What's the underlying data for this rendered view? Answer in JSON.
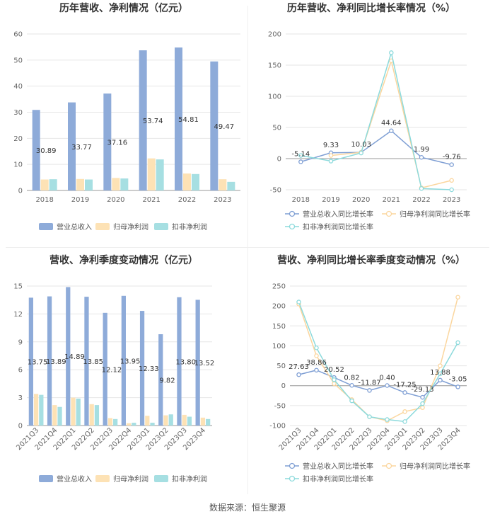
{
  "source_text": "数据来源：恒生聚源",
  "chart_data": [
    {
      "type": "bar",
      "title": "历年营收、净利情况（亿元）",
      "categories": [
        "2018",
        "2019",
        "2020",
        "2021",
        "2022",
        "2023"
      ],
      "ylim": [
        0,
        60
      ],
      "yticks": [
        0,
        10,
        20,
        30,
        40,
        50,
        60
      ],
      "series": [
        {
          "name": "营业总收入",
          "color": "#8eabd9",
          "values": [
            30.89,
            33.77,
            37.16,
            53.74,
            54.81,
            49.47
          ],
          "labels": [
            "30.89",
            "33.77",
            "37.16",
            "53.74",
            "54.81",
            "49.47"
          ]
        },
        {
          "name": "归母净利润",
          "color": "#fde2b5",
          "values": [
            4.2,
            4.4,
            4.8,
            12.3,
            6.5,
            4.3
          ]
        },
        {
          "name": "扣非净利润",
          "color": "#a6dfe2",
          "values": [
            4.3,
            4.2,
            4.6,
            11.9,
            6.3,
            3.3
          ]
        }
      ]
    },
    {
      "type": "line",
      "title": "历年营收、净利同比增长率情况（%）",
      "categories": [
        "2018",
        "2019",
        "2020",
        "2021",
        "2022",
        "2023"
      ],
      "ylim": [
        -50,
        200
      ],
      "yticks": [
        -50,
        0,
        50,
        100,
        150,
        200
      ],
      "series": [
        {
          "name": "营业总收入同比增长率",
          "color": "#7f9fd4",
          "values": [
            -5.14,
            9.33,
            10.03,
            44.64,
            1.99,
            -9.76
          ],
          "labels": [
            "-5.14",
            "9.33",
            "10.03",
            "44.64",
            "1.99",
            "-9.76"
          ]
        },
        {
          "name": "归母净利润同比增长率",
          "color": "#fbd69e",
          "values": [
            null,
            5,
            10,
            157,
            -47,
            -35
          ]
        },
        {
          "name": "扣非净利润同比增长率",
          "color": "#8cdadc",
          "values": [
            5,
            -4,
            9,
            170,
            -48,
            -50
          ]
        }
      ]
    },
    {
      "type": "bar",
      "title": "营收、净利季度变动情况（亿元）",
      "categories": [
        "2021Q3",
        "2021Q4",
        "2022Q1",
        "2022Q2",
        "2022Q3",
        "2022Q4",
        "2023Q1",
        "2023Q2",
        "2023Q3",
        "2023Q4"
      ],
      "ylim": [
        0,
        15
      ],
      "yticks": [
        0,
        3,
        6,
        9,
        12,
        15
      ],
      "series": [
        {
          "name": "营业总收入",
          "color": "#8eabd9",
          "values": [
            13.75,
            13.89,
            14.89,
            13.85,
            12.12,
            13.95,
            12.33,
            9.82,
            13.8,
            13.52
          ],
          "labels": [
            "13.75",
            "13.89",
            "14.89",
            "13.85",
            "12.12",
            "13.95",
            "12.33",
            "9.82",
            "13.80",
            "13.52"
          ]
        },
        {
          "name": "归母净利润",
          "color": "#fde2b5",
          "values": [
            3.4,
            2.2,
            3.0,
            2.3,
            0.8,
            0.25,
            1.05,
            1.1,
            1.15,
            0.85
          ]
        },
        {
          "name": "扣非净利润",
          "color": "#a6dfe2",
          "values": [
            3.3,
            2.0,
            2.9,
            2.2,
            0.7,
            0.3,
            0.3,
            1.2,
            0.95,
            0.7
          ]
        }
      ]
    },
    {
      "type": "line",
      "title": "营收、净利同比增长率季度变动情况（%）",
      "categories": [
        "2021Q3",
        "2021Q4",
        "2022Q1",
        "2022Q2",
        "2022Q3",
        "2022Q4",
        "2023Q1",
        "2023Q2",
        "2023Q3",
        "2023Q4"
      ],
      "ylim": [
        -100,
        250
      ],
      "yticks": [
        -100,
        -50,
        0,
        50,
        100,
        150,
        200,
        250
      ],
      "series": [
        {
          "name": "营业总收入同比增长率",
          "color": "#7f9fd4",
          "values": [
            27.63,
            38.86,
            20.52,
            0.82,
            -11.87,
            0.4,
            -17.25,
            -29.13,
            13.88,
            -3.05
          ],
          "labels": [
            "27.63",
            "38.86",
            "20.52",
            "0.82",
            "-11.87",
            "0.40",
            "-17.25",
            "-29.13",
            "13.88",
            "-3.05"
          ]
        },
        {
          "name": "归母净利润同比增长率",
          "color": "#fbd69e",
          "values": [
            205,
            75,
            5,
            -35,
            -78,
            -88,
            -65,
            -55,
            50,
            222
          ]
        },
        {
          "name": "扣非净利润同比增长率",
          "color": "#8cdadc",
          "values": [
            210,
            95,
            15,
            -38,
            -78,
            -85,
            -90,
            -45,
            30,
            108
          ]
        }
      ]
    }
  ]
}
